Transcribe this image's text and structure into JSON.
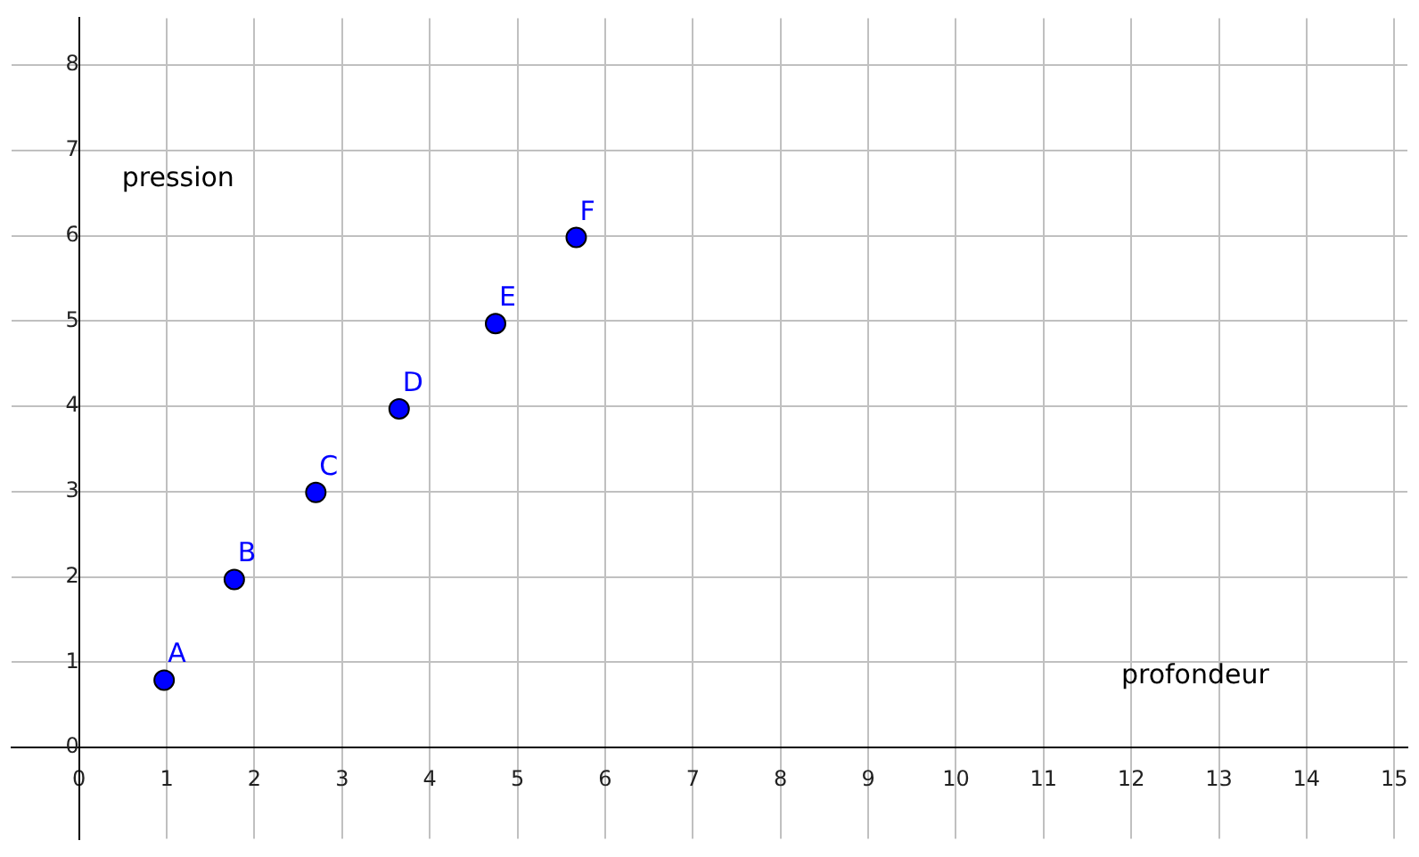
{
  "chart_data": {
    "type": "scatter",
    "xlabel": "profondeur",
    "ylabel": "pression",
    "x": [
      0.97,
      1.77,
      2.7,
      3.65,
      4.75,
      5.67
    ],
    "values": [
      0.79,
      1.97,
      2.99,
      3.97,
      4.97,
      5.98
    ],
    "color": "#0000ff",
    "marker": "circle",
    "xlim": [
      -0.77,
      15.15
    ],
    "ylim": [
      -1.07,
      8.55
    ],
    "xticks": [
      0,
      1,
      2,
      3,
      4,
      5,
      6,
      7,
      8,
      9,
      10,
      11,
      12,
      13,
      14,
      15
    ],
    "yticks": [
      0,
      1,
      2,
      3,
      4,
      5,
      6,
      7,
      8
    ],
    "grid": true,
    "annotations": [
      {
        "text": "A",
        "x": 0.97,
        "y": 0.79
      },
      {
        "text": "B",
        "x": 1.77,
        "y": 1.97
      },
      {
        "text": "C",
        "x": 2.7,
        "y": 2.99
      },
      {
        "text": "D",
        "x": 3.65,
        "y": 3.97
      },
      {
        "text": "E",
        "x": 4.75,
        "y": 4.97
      },
      {
        "text": "F",
        "x": 5.67,
        "y": 5.98
      }
    ]
  }
}
